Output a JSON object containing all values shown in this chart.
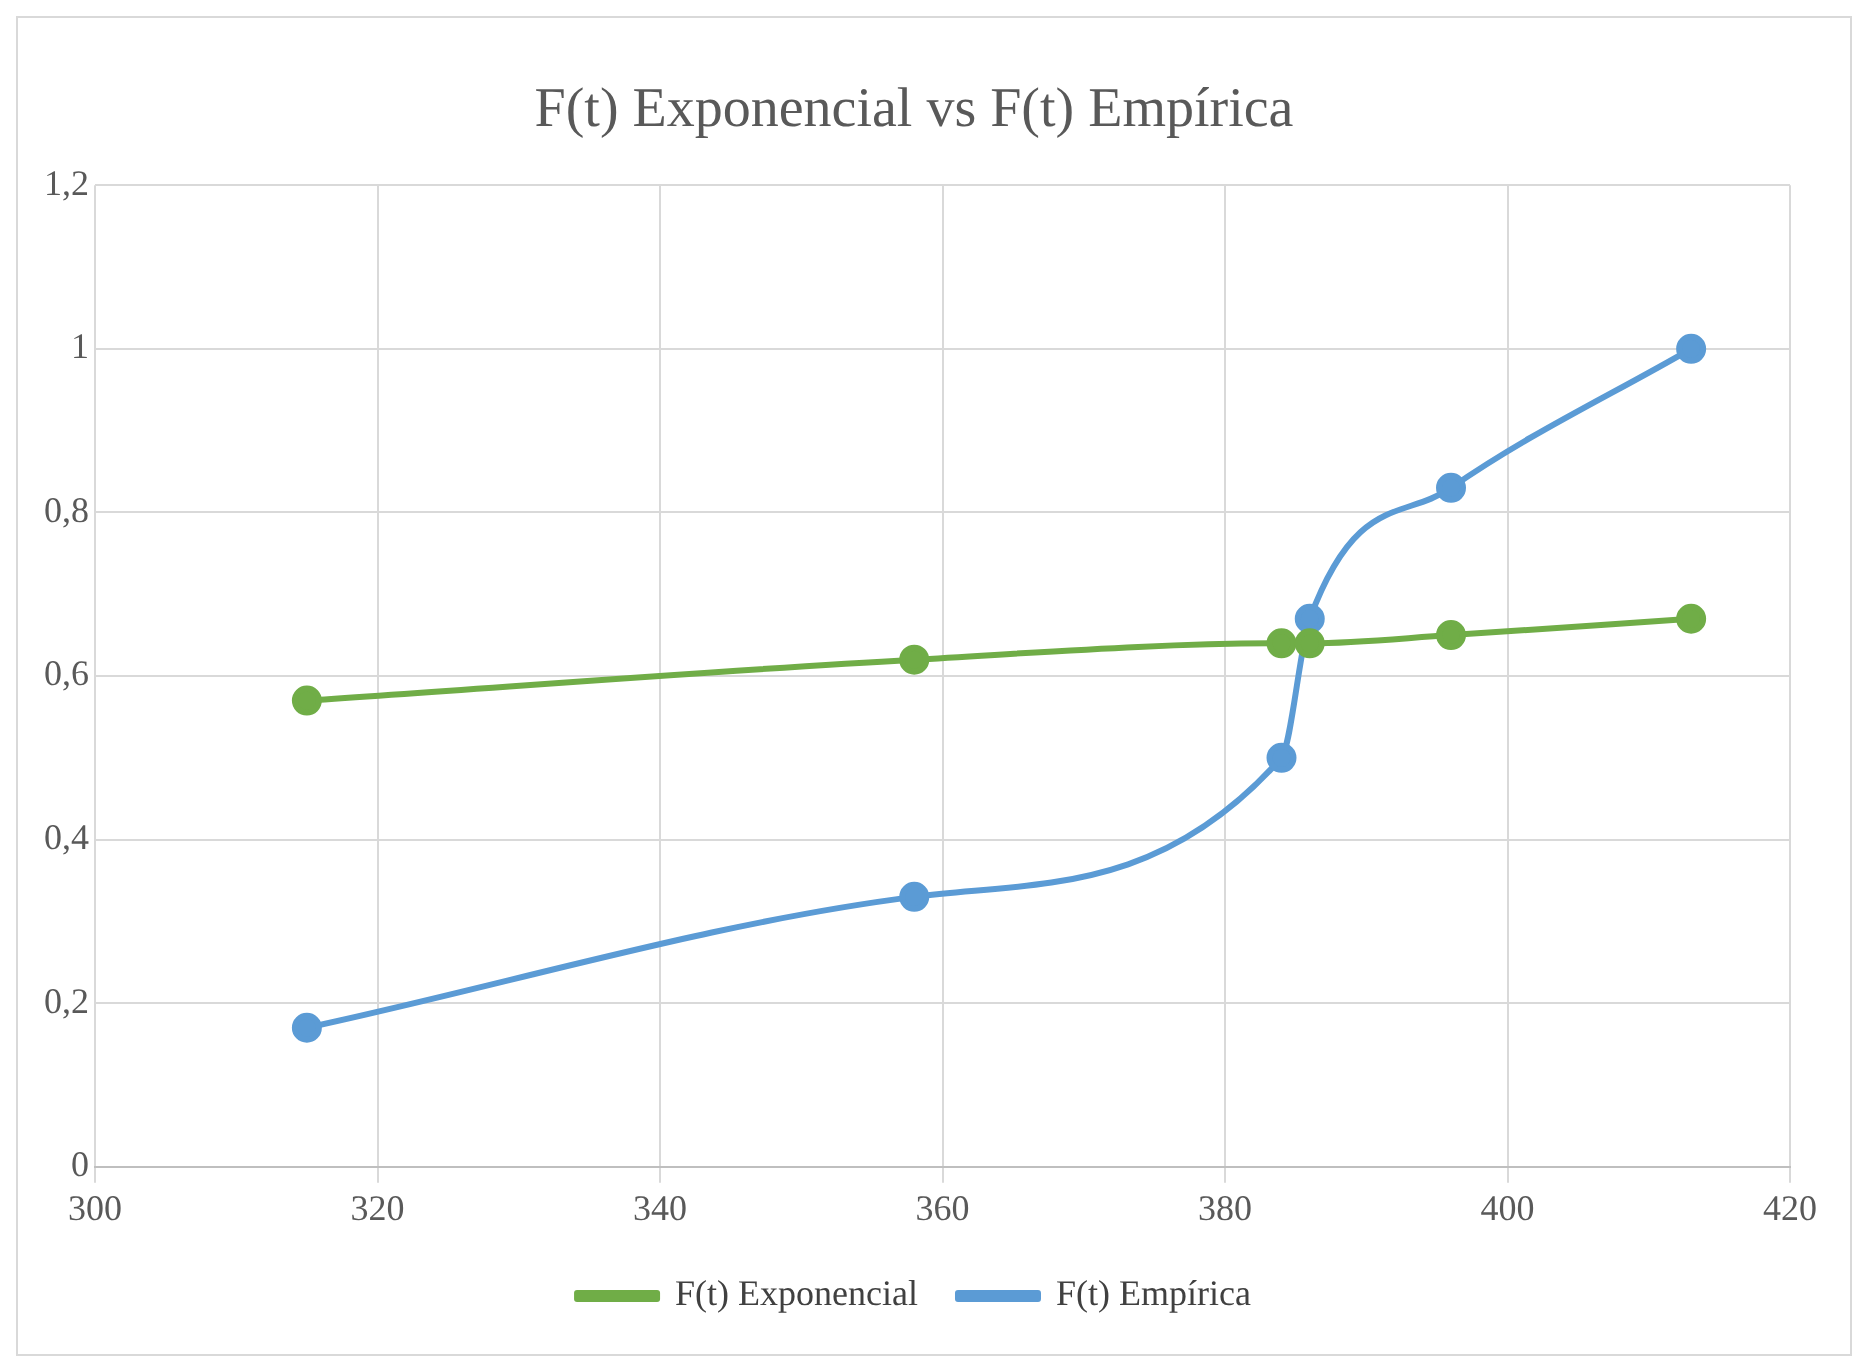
{
  "chart_data": {
    "type": "line",
    "title": "F(t) Exponencial vs F(t) Empírica",
    "x": [
      315,
      358,
      384,
      386,
      396,
      413
    ],
    "series": [
      {
        "name": "F(t) Exponencial",
        "color": "#70ad47",
        "values": [
          0.57,
          0.62,
          0.64,
          0.64,
          0.65,
          0.67
        ]
      },
      {
        "name": "F(t) Empírica",
        "color": "#5b9bd5",
        "values": [
          0.17,
          0.33,
          0.5,
          0.67,
          0.83,
          1
        ]
      }
    ],
    "xlim": [
      300,
      420
    ],
    "xticks": [
      300,
      320,
      340,
      360,
      380,
      400,
      420
    ],
    "ylim": [
      0,
      1.2
    ],
    "yticks": [
      0,
      {
        "value": 0.2,
        "label": "0,2"
      },
      {
        "value": 0.4,
        "label": "0,4"
      },
      {
        "value": 0.6,
        "label": "0,6"
      },
      {
        "value": 0.8,
        "label": "0,8"
      },
      1,
      {
        "value": 1.2,
        "label": "1,2"
      }
    ],
    "grid": true,
    "legend": "bottom",
    "marker": "circle",
    "line_style": "solid"
  }
}
